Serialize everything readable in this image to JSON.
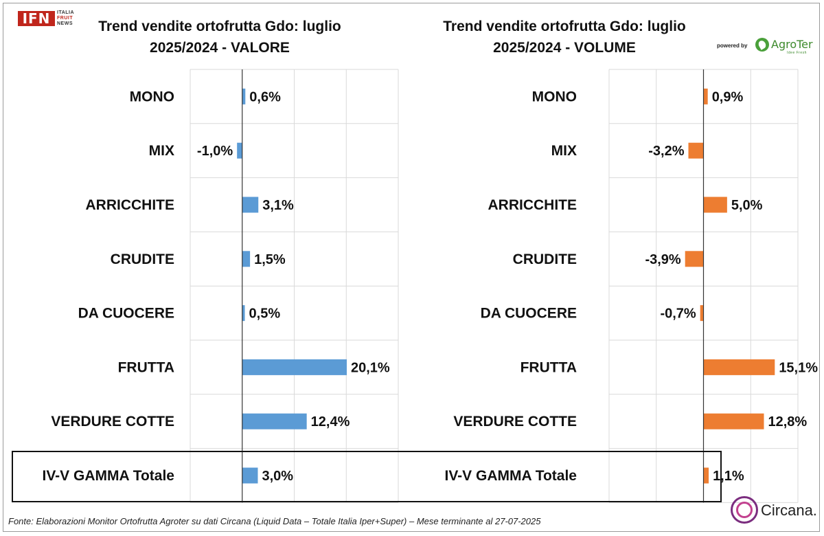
{
  "header": {
    "ifn_logo": "IFN",
    "ifn_side": [
      "ITALIA",
      "FRUIT",
      "NEWS"
    ],
    "powered_by": "powered by",
    "agroter_logo": "AgroTer",
    "agroter_tagline": "Idee Fresh"
  },
  "chart_data": [
    {
      "type": "bar",
      "orientation": "horizontal",
      "title_line1": "Trend vendite ortofrutta Gdo: luglio",
      "title_line2": "2025/2024 - VALORE",
      "categories": [
        "MONO",
        "MIX",
        "ARRICCHITE",
        "CRUDITE",
        "DA CUOCERE",
        "FRUTTA",
        "VERDURE COTTE",
        "IV-V GAMMA Totale"
      ],
      "values": [
        0.6,
        -1.0,
        3.1,
        1.5,
        0.5,
        20.1,
        12.4,
        3.0
      ],
      "value_labels": [
        "0,6%",
        "-1,0%",
        "3,1%",
        "1,5%",
        "0,5%",
        "20,1%",
        "12,4%",
        "3,0%"
      ],
      "xlim": [
        -10,
        30
      ],
      "grid": true,
      "color": "#5b9bd5"
    },
    {
      "type": "bar",
      "orientation": "horizontal",
      "title_line1": "Trend vendite ortofrutta Gdo: luglio",
      "title_line2": "2025/2024 - VOLUME",
      "categories": [
        "MONO",
        "MIX",
        "ARRICCHITE",
        "CRUDITE",
        "DA CUOCERE",
        "FRUTTA",
        "VERDURE COTTE",
        "IV-V GAMMA Totale"
      ],
      "values": [
        0.9,
        -3.2,
        5.0,
        -3.9,
        -0.7,
        15.1,
        12.8,
        1.1
      ],
      "value_labels": [
        "0,9%",
        "-3,2%",
        "5,0%",
        "-3,9%",
        "-0,7%",
        "15,1%",
        "12,8%",
        "1,1%"
      ],
      "xlim": [
        -20,
        20
      ],
      "grid": true,
      "color": "#ed7d31"
    }
  ],
  "footer": {
    "source": "Fonte: Elaborazioni Monitor Ortofrutta Agroter su dati Circana (Liquid Data – Totale Italia Iper+Super) – Mese terminante al 27-07-2025",
    "circana_logo": "Circana."
  }
}
